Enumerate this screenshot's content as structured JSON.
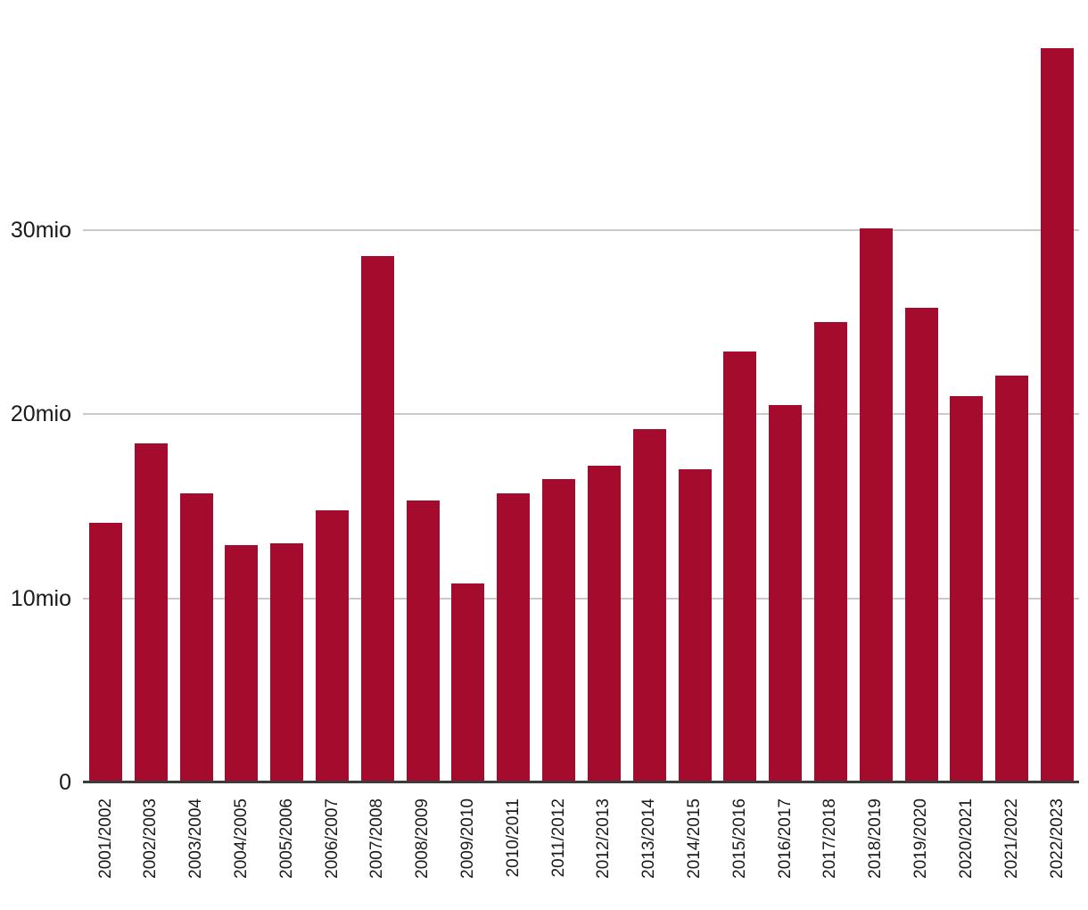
{
  "chart_data": {
    "type": "bar",
    "title": "",
    "xlabel": "",
    "ylabel": "",
    "categories": [
      "2001/2002",
      "2002/2003",
      "2003/2004",
      "2004/2005",
      "2005/2006",
      "2006/2007",
      "2007/2008",
      "2008/2009",
      "2009/2010",
      "2010/2011",
      "2011/2012",
      "2012/2013",
      "2013/2014",
      "2014/2015",
      "2015/2016",
      "2016/2017",
      "2017/2018",
      "2018/2019",
      "2019/2020",
      "2020/2021",
      "2021/2022",
      "2022/2023"
    ],
    "values": [
      14.1,
      18.4,
      15.7,
      12.9,
      13.0,
      14.8,
      28.6,
      15.3,
      10.8,
      15.7,
      16.5,
      17.2,
      19.2,
      17.0,
      23.4,
      20.5,
      25.0,
      30.1,
      25.8,
      21.0,
      22.1,
      39.9
    ],
    "unit": "mio",
    "ylim": [
      0,
      42.5
    ],
    "yticks": [
      {
        "value": 0,
        "label": "0"
      },
      {
        "value": 10,
        "label": "10mio"
      },
      {
        "value": 20,
        "label": "20mio"
      },
      {
        "value": 30,
        "label": "30mio"
      }
    ],
    "grid": true,
    "legend": "none",
    "colors": {
      "bar": "#A50B2D",
      "grid": "#C9C9C9",
      "axis": "#3C3C3B",
      "text": "#1A1A1A"
    }
  }
}
